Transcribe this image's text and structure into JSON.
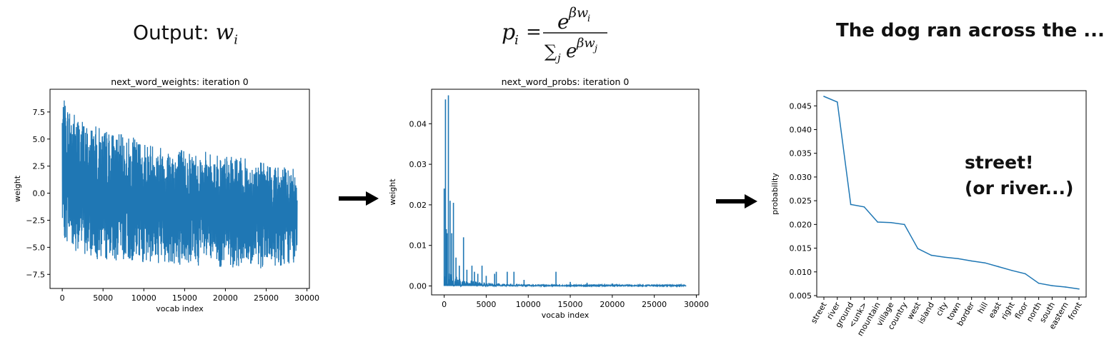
{
  "headings": {
    "left_prefix": "Output: ",
    "left_var": "w",
    "left_sub": "i",
    "right": "The dog ran across the ..."
  },
  "formula": {
    "lhs": "p",
    "lhs_sub": "i",
    "equals": "=",
    "num_base": "e",
    "num_exp": "βw",
    "num_exp_sub": "i",
    "den_sum": "∑",
    "den_sum_sub": "j",
    "den_base": "e",
    "den_exp": "βw",
    "den_exp_sub": "j"
  },
  "annotation": {
    "line1": "street!",
    "line2": "(or river...)"
  },
  "chart_data": [
    {
      "type": "line",
      "title": "next_word_weights: iteration 0",
      "xlabel": "vocab index",
      "ylabel": "weight",
      "xlim": [
        -1500,
        30300
      ],
      "ylim": [
        -8.8,
        9.6
      ],
      "xticks": [
        0,
        5000,
        10000,
        15000,
        20000,
        25000,
        30000
      ],
      "yticks": [
        -7.5,
        -5.0,
        -2.5,
        0.0,
        2.5,
        5.0,
        7.5
      ],
      "xtick_labels": [
        "0",
        "5000",
        "10000",
        "15000",
        "20000",
        "25000",
        "30000"
      ],
      "ytick_labels": [
        "−7.5",
        "−5.0",
        "−2.5",
        "0.0",
        "2.5",
        "5.0",
        "7.5"
      ],
      "color": "#1f77b4",
      "n_points": 28800,
      "upper_envelope": [
        [
          0,
          8.8
        ],
        [
          1000,
          8.0
        ],
        [
          3000,
          6.5
        ],
        [
          7000,
          5.5
        ],
        [
          12000,
          4.5
        ],
        [
          18000,
          3.8
        ],
        [
          24000,
          3.0
        ],
        [
          28800,
          2.2
        ]
      ],
      "lower_envelope": [
        [
          0,
          -4.0
        ],
        [
          1000,
          -5.0
        ],
        [
          3000,
          -6.0
        ],
        [
          7000,
          -6.3
        ],
        [
          12000,
          -6.5
        ],
        [
          18000,
          -6.8
        ],
        [
          24000,
          -7.0
        ],
        [
          28800,
          -6.5
        ]
      ]
    },
    {
      "type": "line",
      "title": "next_word_probs: iteration 0",
      "xlabel": "vocab index",
      "ylabel": "weight",
      "xlim": [
        -1500,
        30300
      ],
      "ylim": [
        -0.0022,
        0.0485
      ],
      "xticks": [
        0,
        5000,
        10000,
        15000,
        20000,
        25000,
        30000
      ],
      "yticks": [
        0.0,
        0.01,
        0.02,
        0.03,
        0.04
      ],
      "xtick_labels": [
        "0",
        "5000",
        "10000",
        "15000",
        "20000",
        "25000",
        "30000"
      ],
      "ytick_labels": [
        "0.00",
        "0.01",
        "0.02",
        "0.03",
        "0.04"
      ],
      "color": "#1f77b4",
      "n_points": 28800,
      "spikes": [
        [
          0,
          0.024
        ],
        [
          150,
          0.046
        ],
        [
          250,
          0.014
        ],
        [
          350,
          0.013
        ],
        [
          500,
          0.047
        ],
        [
          700,
          0.021
        ],
        [
          900,
          0.013
        ],
        [
          1100,
          0.0205
        ],
        [
          1400,
          0.007
        ],
        [
          1800,
          0.005
        ],
        [
          2300,
          0.012
        ],
        [
          2700,
          0.004
        ],
        [
          3300,
          0.005
        ],
        [
          3600,
          0.0035
        ],
        [
          4000,
          0.003
        ],
        [
          4500,
          0.005
        ],
        [
          5000,
          0.0025
        ],
        [
          6000,
          0.003
        ],
        [
          6200,
          0.0035
        ],
        [
          7500,
          0.0035
        ],
        [
          8300,
          0.0035
        ],
        [
          9500,
          0.0015
        ],
        [
          13300,
          0.0035
        ],
        [
          15000,
          0.001
        ],
        [
          17000,
          0.0008
        ],
        [
          20000,
          0.0006
        ],
        [
          25000,
          0.0004
        ]
      ]
    },
    {
      "type": "line",
      "title": "",
      "xlabel": "",
      "ylabel": "probability",
      "ylim": [
        0.0047,
        0.0482
      ],
      "yticks": [
        0.005,
        0.01,
        0.015,
        0.02,
        0.025,
        0.03,
        0.035,
        0.04,
        0.045
      ],
      "ytick_labels": [
        "0.005",
        "0.010",
        "0.015",
        "0.020",
        "0.025",
        "0.030",
        "0.035",
        "0.040",
        "0.045"
      ],
      "color": "#1f77b4",
      "categories": [
        "street",
        "river",
        "ground",
        "<unk>",
        "mountain",
        "village",
        "country",
        "west",
        "island",
        "city",
        "town",
        "border",
        "hill",
        "east",
        "right",
        "floor",
        "north",
        "south",
        "eastern",
        "front"
      ],
      "values": [
        0.047,
        0.0458,
        0.0242,
        0.0237,
        0.0205,
        0.0204,
        0.02,
        0.0149,
        0.0135,
        0.0131,
        0.0128,
        0.0123,
        0.0119,
        0.0111,
        0.0103,
        0.0096,
        0.0076,
        0.0071,
        0.0068,
        0.0064
      ]
    }
  ]
}
